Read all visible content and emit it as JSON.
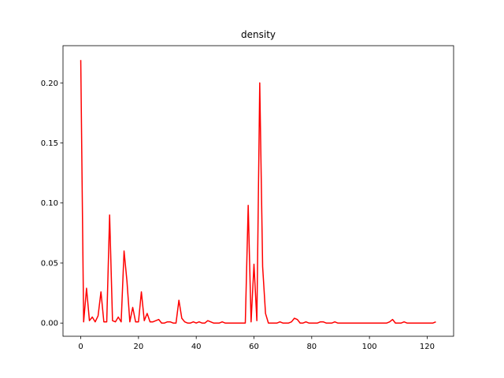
{
  "chart_data": {
    "type": "line",
    "title": "density",
    "xlabel": "",
    "ylabel": "",
    "xlim": [
      -6.15,
      129.15
    ],
    "ylim": [
      -0.011,
      0.231
    ],
    "xticks": [
      0,
      20,
      40,
      60,
      80,
      100,
      120
    ],
    "xtick_labels": [
      "0",
      "20",
      "40",
      "60",
      "80",
      "100",
      "120"
    ],
    "yticks": [
      0.0,
      0.05,
      0.1,
      0.15,
      0.2
    ],
    "ytick_labels": [
      "0.00",
      "0.05",
      "0.10",
      "0.15",
      "0.20"
    ],
    "grid": false,
    "legend": "none",
    "series": [
      {
        "color": "#ff0000",
        "x": [
          0,
          1,
          2,
          3,
          4,
          5,
          6,
          7,
          8,
          9,
          10,
          11,
          12,
          13,
          14,
          15,
          16,
          17,
          18,
          19,
          20,
          21,
          22,
          23,
          24,
          25,
          26,
          27,
          28,
          29,
          30,
          31,
          32,
          33,
          34,
          35,
          36,
          37,
          38,
          39,
          40,
          41,
          42,
          43,
          44,
          45,
          46,
          47,
          48,
          49,
          50,
          51,
          52,
          53,
          54,
          55,
          56,
          57,
          58,
          59,
          60,
          61,
          62,
          63,
          64,
          65,
          66,
          67,
          68,
          69,
          70,
          71,
          72,
          73,
          74,
          75,
          76,
          77,
          78,
          79,
          80,
          81,
          82,
          83,
          84,
          85,
          86,
          87,
          88,
          89,
          90,
          91,
          92,
          93,
          94,
          95,
          96,
          97,
          98,
          99,
          100,
          101,
          102,
          103,
          104,
          105,
          106,
          107,
          108,
          109,
          110,
          111,
          112,
          113,
          114,
          115,
          116,
          117,
          118,
          119,
          120,
          121,
          122,
          123
        ],
        "y": [
          0.219,
          0.001,
          0.029,
          0.002,
          0.005,
          0.001,
          0.006,
          0.026,
          0.001,
          0.001,
          0.09,
          0.002,
          0.001,
          0.005,
          0.001,
          0.06,
          0.035,
          0.001,
          0.013,
          0.001,
          0.001,
          0.026,
          0.002,
          0.008,
          0.001,
          0.001,
          0.002,
          0.003,
          0.0,
          0.0,
          0.001,
          0.001,
          0.0,
          0.0,
          0.019,
          0.004,
          0.001,
          0.0,
          0.0,
          0.001,
          0.0,
          0.001,
          0.0,
          0.0,
          0.002,
          0.001,
          0.0,
          0.0,
          0.0,
          0.001,
          0.0,
          0.0,
          0.0,
          0.0,
          0.0,
          0.0,
          0.0,
          0.0,
          0.098,
          0.001,
          0.049,
          0.002,
          0.2,
          0.047,
          0.008,
          0.0,
          0.0,
          0.0,
          0.0,
          0.001,
          0.0,
          0.0,
          0.0,
          0.001,
          0.004,
          0.003,
          0.0,
          0.0,
          0.001,
          0.0,
          0.0,
          0.0,
          0.0,
          0.001,
          0.001,
          0.0,
          0.0,
          0.0,
          0.001,
          0.0,
          0.0,
          0.0,
          0.0,
          0.0,
          0.0,
          0.0,
          0.0,
          0.0,
          0.0,
          0.0,
          0.0,
          0.0,
          0.0,
          0.0,
          0.0,
          0.0,
          0.0,
          0.001,
          0.003,
          0.0,
          0.0,
          0.0,
          0.001,
          0.0,
          0.0,
          0.0,
          0.0,
          0.0,
          0.0,
          0.0,
          0.0,
          0.0,
          0.0,
          0.001
        ]
      }
    ]
  }
}
